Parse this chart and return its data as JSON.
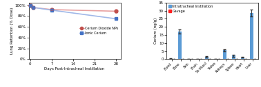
{
  "left": {
    "x": [
      0,
      1,
      7,
      28
    ],
    "cerium_np": [
      100,
      96,
      92,
      89
    ],
    "ionic_ce": [
      100,
      96,
      91,
      75
    ],
    "cerium_np_err": [
      0.5,
      1.5,
      1.5,
      2
    ],
    "ionic_ce_err": [
      0.5,
      1.5,
      2,
      2
    ],
    "ylabel": "Lung Retention (% Dose)",
    "xlabel": "Days Post-Intracheal Instillation",
    "xticks": [
      0,
      7,
      14,
      21,
      28
    ],
    "ylim": [
      0,
      105
    ],
    "yticks": [
      0,
      20,
      40,
      60,
      80,
      100
    ],
    "yticklabels": [
      "0%",
      "20%",
      "40%",
      "60%",
      "80%",
      "100%"
    ],
    "np_line_color": "#e8a0a0",
    "ionic_line_color": "#a0b8e8",
    "np_marker_color": "#c0504d",
    "ionic_marker_color": "#4472c4",
    "legend_np": "Cerium Dioxide NPs",
    "legend_ionic": "Ionic Cerium"
  },
  "right": {
    "categories": [
      "Blood",
      "Bone",
      "Skin",
      "Brain",
      "Sk Muscl",
      "Testes",
      "Kidneys",
      "Spleen",
      "Heart",
      "Liver"
    ],
    "it_values": [
      0.35,
      17.0,
      0.15,
      0.15,
      1.3,
      0.15,
      5.5,
      2.2,
      1.1,
      28.5
    ],
    "it_errors": [
      0.12,
      1.3,
      0.05,
      0.05,
      0.5,
      0.05,
      0.55,
      0.7,
      0.15,
      2.2
    ],
    "gav_values": [
      0.12,
      0.08,
      0.05,
      0.05,
      0.05,
      0.05,
      0.05,
      0.05,
      0.05,
      0.08
    ],
    "gav_errors": [
      0.04,
      0.03,
      0.02,
      0.02,
      0.02,
      0.02,
      0.02,
      0.02,
      0.02,
      0.03
    ],
    "ylabel": "Cerium (ng/g)",
    "it_color": "#5b9bd5",
    "gav_color": "#ff2020",
    "legend_it": "Intratracheal Instillation",
    "legend_gav": "Gavage",
    "ylim": [
      0,
      35
    ],
    "yticks": [
      0,
      5,
      10,
      15,
      20,
      25,
      30,
      35
    ]
  }
}
